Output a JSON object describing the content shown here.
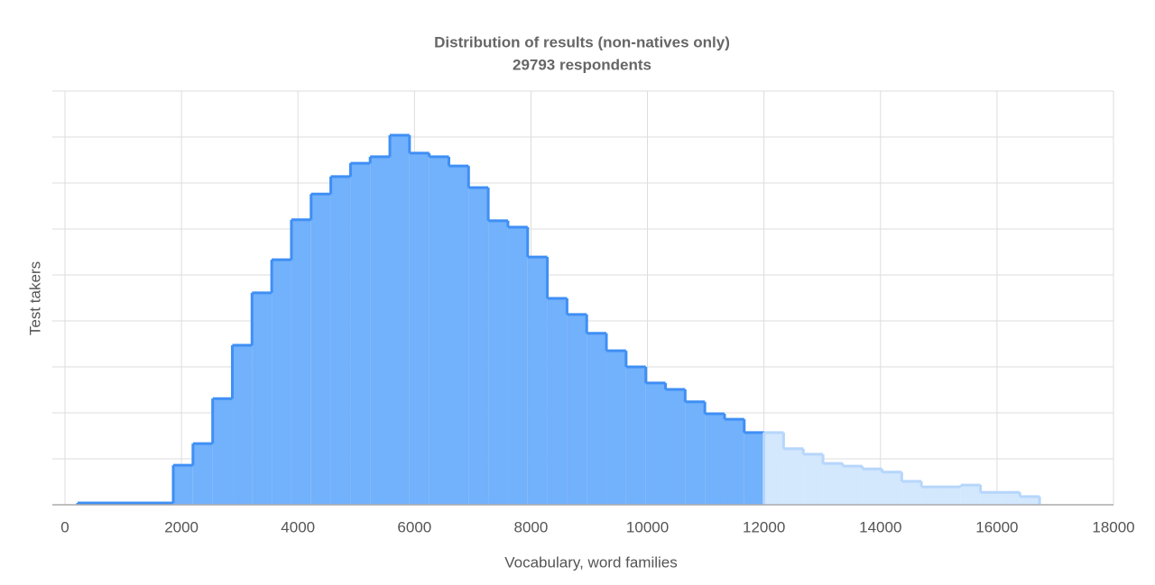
{
  "chart_data": {
    "type": "histogram",
    "title": "Distribution of results (non-natives only)",
    "subtitle": "29793 respondents",
    "x_label": "Vocabulary, word families",
    "y_label": "Test takers",
    "xlim": [
      0,
      18000
    ],
    "xticks": [
      0,
      2000,
      4000,
      6000,
      8000,
      10000,
      12000,
      14000,
      16000,
      18000
    ],
    "ylim": [
      0,
      9
    ],
    "yticks": [
      0,
      1,
      2,
      3,
      4,
      5,
      6,
      7,
      8,
      9
    ],
    "show_ytick_labels": false,
    "grid": true,
    "series": [
      {
        "color": "#3f8ff5",
        "fill": "#72b1fb",
        "bins": [
          217,
          1859,
          2197,
          2535,
          2873,
          3211,
          3549,
          3887,
          4225,
          4563,
          4901,
          5239,
          5577,
          5915,
          6253,
          6591,
          6929,
          7267,
          7605,
          7943,
          8281,
          8619,
          8957,
          9295,
          9633,
          9971,
          10309,
          10647,
          10985,
          11323,
          11661,
          11999
        ],
        "values": [
          0.04,
          0.86,
          1.33,
          2.31,
          3.47,
          4.61,
          5.33,
          6.2,
          6.76,
          7.14,
          7.43,
          7.57,
          8.04,
          7.65,
          7.57,
          7.37,
          6.9,
          6.18,
          6.04,
          5.39,
          4.49,
          4.14,
          3.73,
          3.35,
          3.0,
          2.65,
          2.51,
          2.24,
          1.98,
          1.86,
          1.57
        ]
      },
      {
        "color": "#b6d6fb",
        "fill": "#d3e7fd",
        "bins": [
          11999,
          12337,
          12675,
          13013,
          13351,
          13689,
          14027,
          14365,
          14703,
          15041,
          15379,
          15717,
          16055,
          16393,
          16731
        ],
        "values": [
          1.57,
          1.22,
          1.1,
          0.9,
          0.84,
          0.78,
          0.71,
          0.51,
          0.39,
          0.39,
          0.43,
          0.27,
          0.27,
          0.18
        ]
      }
    ]
  }
}
